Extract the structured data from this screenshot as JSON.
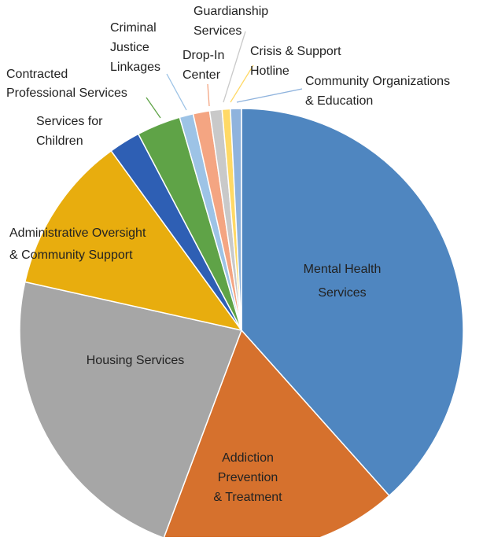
{
  "chart_data": {
    "type": "pie",
    "title": "",
    "start_angle_deg": 0,
    "direction": "clockwise",
    "slices": [
      {
        "label": "Mental Health Services",
        "lines": [
          "Mental Health",
          "Services"
        ],
        "value": 38.4,
        "color": "#4f86c0",
        "label_position": "inside"
      },
      {
        "label": "Addiction Prevention & Treatment",
        "lines": [
          "Addiction",
          "Prevention",
          "& Treatment"
        ],
        "value": 17.3,
        "color": "#d6712d",
        "label_position": "inside"
      },
      {
        "label": "Housing Services",
        "lines": [
          "Housing Services"
        ],
        "value": 22.8,
        "color": "#a6a6a6",
        "label_position": "inside"
      },
      {
        "label": "Administrative Oversight & Community Support",
        "lines": [
          "Administrative Oversight",
          "& Community Support"
        ],
        "value": 11.5,
        "color": "#e8ad0e",
        "label_position": "outside"
      },
      {
        "label": "Services for Children",
        "lines": [
          "Services for",
          "Children"
        ],
        "value": 2.3,
        "color": "#2e5fb4",
        "label_position": "outside"
      },
      {
        "label": "Contracted Professional Services",
        "lines": [
          "Contracted",
          "Professional Services"
        ],
        "value": 3.2,
        "color": "#5fa347",
        "label_position": "outside"
      },
      {
        "label": "Criminal Justice Linkages",
        "lines": [
          "Criminal",
          "Justice",
          "Linkages"
        ],
        "value": 1.0,
        "color": "#9dc3e6",
        "label_position": "outside"
      },
      {
        "label": "Drop-In Center",
        "lines": [
          "Drop-In",
          "Center"
        ],
        "value": 1.2,
        "color": "#f4a582",
        "label_position": "outside"
      },
      {
        "label": "Guardianship Services",
        "lines": [
          "Guardianship",
          "Services"
        ],
        "value": 0.9,
        "color": "#c9c9c9",
        "label_position": "outside"
      },
      {
        "label": "Crisis & Support Hotline",
        "lines": [
          "Crisis & Support",
          "Hotline"
        ],
        "value": 0.6,
        "color": "#ffd966",
        "label_position": "outside"
      },
      {
        "label": "Community Organizations & Education",
        "lines": [
          "Community Organizations",
          "& Education"
        ],
        "value": 0.8,
        "color": "#8fb3dd",
        "label_position": "outside"
      }
    ]
  }
}
